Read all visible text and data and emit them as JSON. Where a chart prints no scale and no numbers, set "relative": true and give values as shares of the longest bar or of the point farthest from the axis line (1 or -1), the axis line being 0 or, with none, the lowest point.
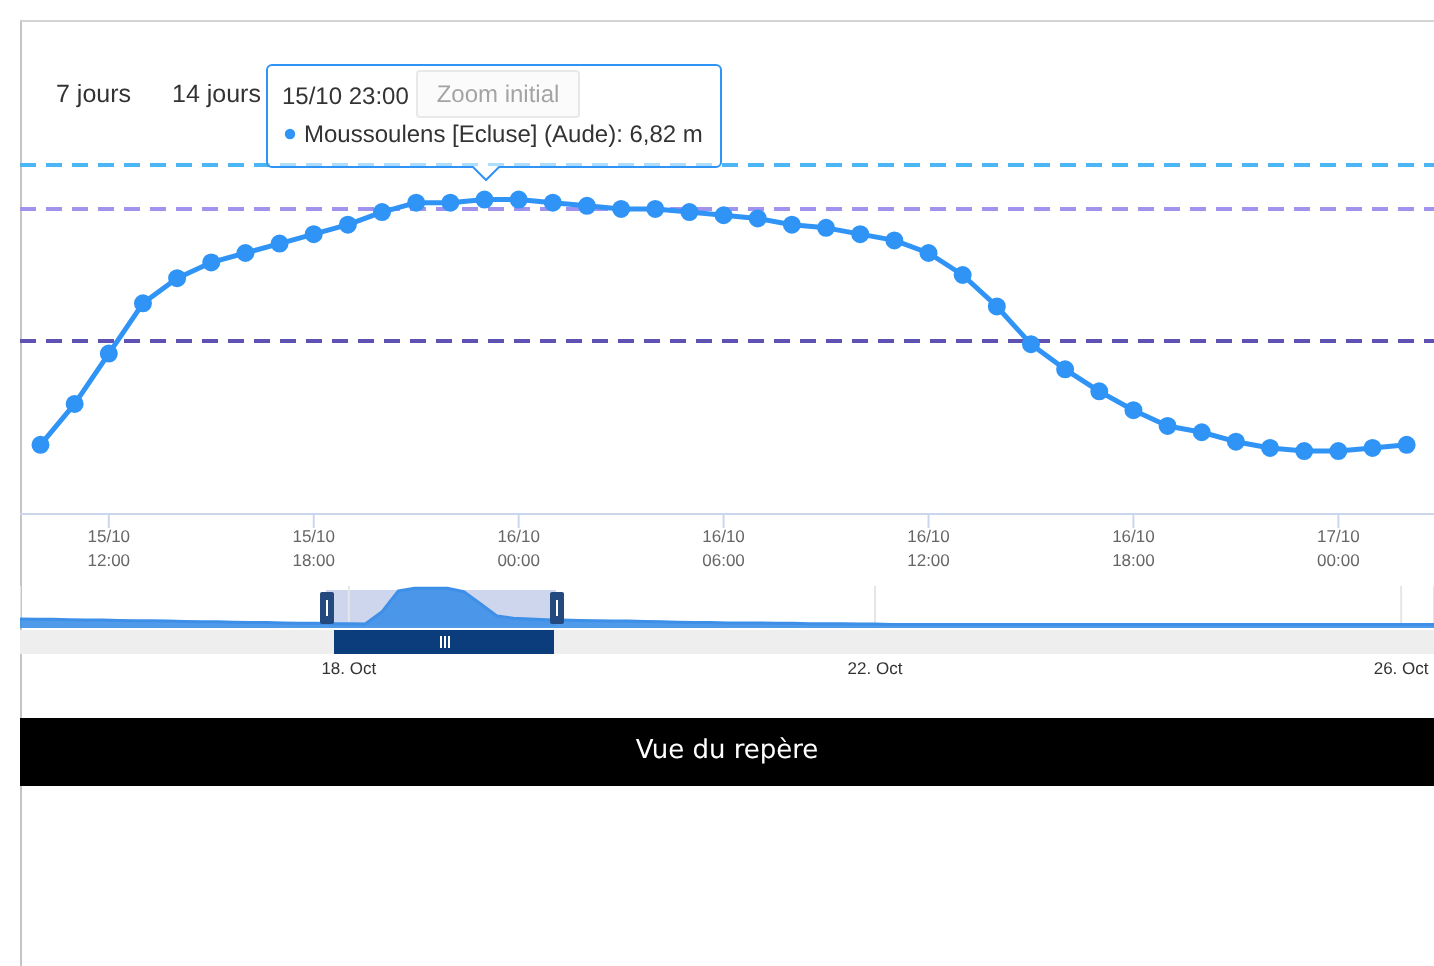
{
  "chart_data": [
    {
      "type": "line",
      "categories": [
        null,
        null,
        "15/10 12:00",
        null,
        null,
        null,
        null,
        null,
        "15/10 18:00",
        null,
        null,
        null,
        null,
        null,
        "16/10 00:00",
        null,
        null,
        null,
        null,
        null,
        "16/10 06:00",
        null,
        null,
        null,
        null,
        null,
        "16/10 12:00",
        null,
        null,
        null,
        null,
        null,
        "16/10 18:00",
        null,
        null,
        null,
        null,
        null,
        "17/10 00:00",
        null,
        null
      ],
      "values": [
        0.22,
        0.35,
        0.51,
        0.67,
        0.75,
        0.8,
        0.83,
        0.86,
        0.89,
        0.92,
        0.96,
        0.99,
        0.99,
        1,
        1,
        0.99,
        0.98,
        0.97,
        0.97,
        0.96,
        0.95,
        0.94,
        0.92,
        0.91,
        0.89,
        0.87,
        0.83,
        0.76,
        0.66,
        0.54,
        0.46,
        0.39,
        0.33,
        0.28,
        0.26,
        0.23,
        0.21,
        0.2,
        0.2,
        0.21,
        0.22
      ],
      "color": "#2f94f5",
      "marker": "circle",
      "line_style": "solid",
      "relative": true,
      "ref_lines": [
        {
          "axis": "y",
          "value": 1.11,
          "color": "#4cb6f5",
          "line_style": "dashed"
        },
        {
          "axis": "y",
          "value": 0.97,
          "color": "#a093ee",
          "line_style": "dashed"
        },
        {
          "axis": "y",
          "value": 0.55,
          "color": "#5e52b3",
          "line_style": "dashed"
        }
      ],
      "annotations": [
        "7 jours",
        "14 jours",
        "Zoom initial",
        "15/10 23:00",
        {
          "text": "Moussoulens [Ecluse] (Aude): 6,82 m",
          "y": 1
        },
        "Vue du repère"
      ]
    },
    {
      "type": "area",
      "categories": [
        null,
        null,
        null,
        null,
        null,
        null,
        null,
        null,
        null,
        null,
        null,
        null,
        null,
        null,
        null,
        null,
        null,
        null,
        null,
        null,
        "18. Oct",
        null,
        null,
        null,
        null,
        null,
        null,
        null,
        null,
        null,
        null,
        null,
        null,
        null,
        null,
        null,
        null,
        null,
        null,
        null,
        null,
        null,
        null,
        null,
        null,
        null,
        null,
        null,
        null,
        null,
        null,
        null,
        "22. Oct",
        null,
        null,
        null,
        null,
        null,
        null,
        null,
        null,
        null,
        null,
        null,
        null,
        null,
        null,
        null,
        null,
        null,
        null,
        null,
        null,
        null,
        null,
        null,
        null,
        null,
        null,
        null,
        null,
        null,
        null,
        null,
        "26. Oct",
        null,
        null
      ],
      "values": [
        0.15,
        0.14,
        0.14,
        0.13,
        0.12,
        0.12,
        0.11,
        0.1,
        0.1,
        0.09,
        0.08,
        0.07,
        0.07,
        0.06,
        0.05,
        0.05,
        0.04,
        0.03,
        0.03,
        0.02,
        0.02,
        0.01,
        0.34,
        0.92,
        1,
        1,
        1,
        0.9,
        0.57,
        0.23,
        0.17,
        0.15,
        0.13,
        0.12,
        0.11,
        0.1,
        0.09,
        0.09,
        0.08,
        0.07,
        0.06,
        0.05,
        0.05,
        0.04,
        0.04,
        0.04,
        0.03,
        0.03,
        0.02,
        0.02,
        0.02,
        0.01,
        0.01,
        0,
        0,
        0,
        0,
        0,
        0,
        0,
        0,
        0,
        0,
        0,
        0,
        0,
        0,
        0,
        0,
        0,
        0,
        0,
        0,
        0,
        0,
        0,
        0,
        0,
        0,
        0,
        0,
        0,
        0,
        0,
        0,
        0,
        0
      ],
      "color": "#3d8fe8",
      "relative": true,
      "grid": "x"
    }
  ]
}
